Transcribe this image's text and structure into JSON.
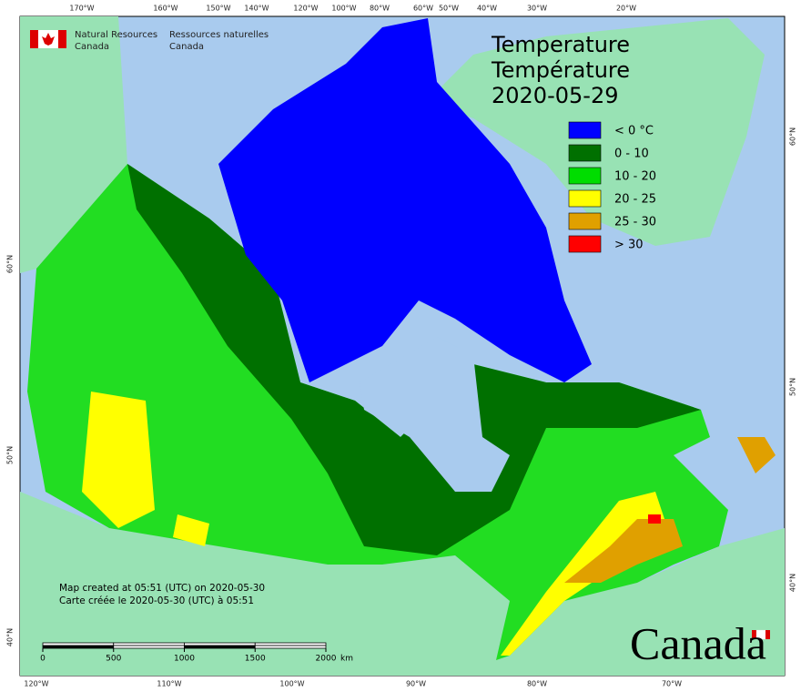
{
  "header": {
    "en_lines": [
      "Natural Resources",
      "Canada"
    ],
    "fr_lines": [
      "Ressources naturelles",
      "Canada"
    ]
  },
  "title": {
    "lines": [
      "Temperature",
      "Température",
      "2020-05-29"
    ]
  },
  "legend": [
    {
      "label": "< 0 °C",
      "color": "#0000ff"
    },
    {
      "label": "0 - 10",
      "color": "#007000"
    },
    {
      "label": "10 - 20",
      "color": "#00dd00"
    },
    {
      "label": "20 - 25",
      "color": "#ffff00"
    },
    {
      "label": "25 - 30",
      "color": "#e0a000"
    },
    {
      "label": "> 30",
      "color": "#ff0000"
    }
  ],
  "graticule": {
    "top": [
      "170°W",
      "160°W",
      "150°W",
      "140°W",
      "120°W",
      "100°W",
      "80°W",
      "60°W",
      "50°W",
      "40°W",
      "30°W",
      "20°W"
    ],
    "bottom": [
      "120°W",
      "110°W",
      "100°W",
      "90°W",
      "80°W",
      "70°W"
    ],
    "left": [
      "60°N",
      "50°N",
      "40°N"
    ],
    "right": [
      "60°N",
      "50°N",
      "40°N"
    ]
  },
  "note": [
    "Map created at 05:51 (UTC) on 2020-05-30",
    "Carte créée le 2020-05-30 (UTC) à 05:51"
  ],
  "scale": {
    "ticks": [
      0,
      500,
      1000,
      1500,
      2000
    ],
    "unit": "km"
  },
  "wordmark": "Canada"
}
